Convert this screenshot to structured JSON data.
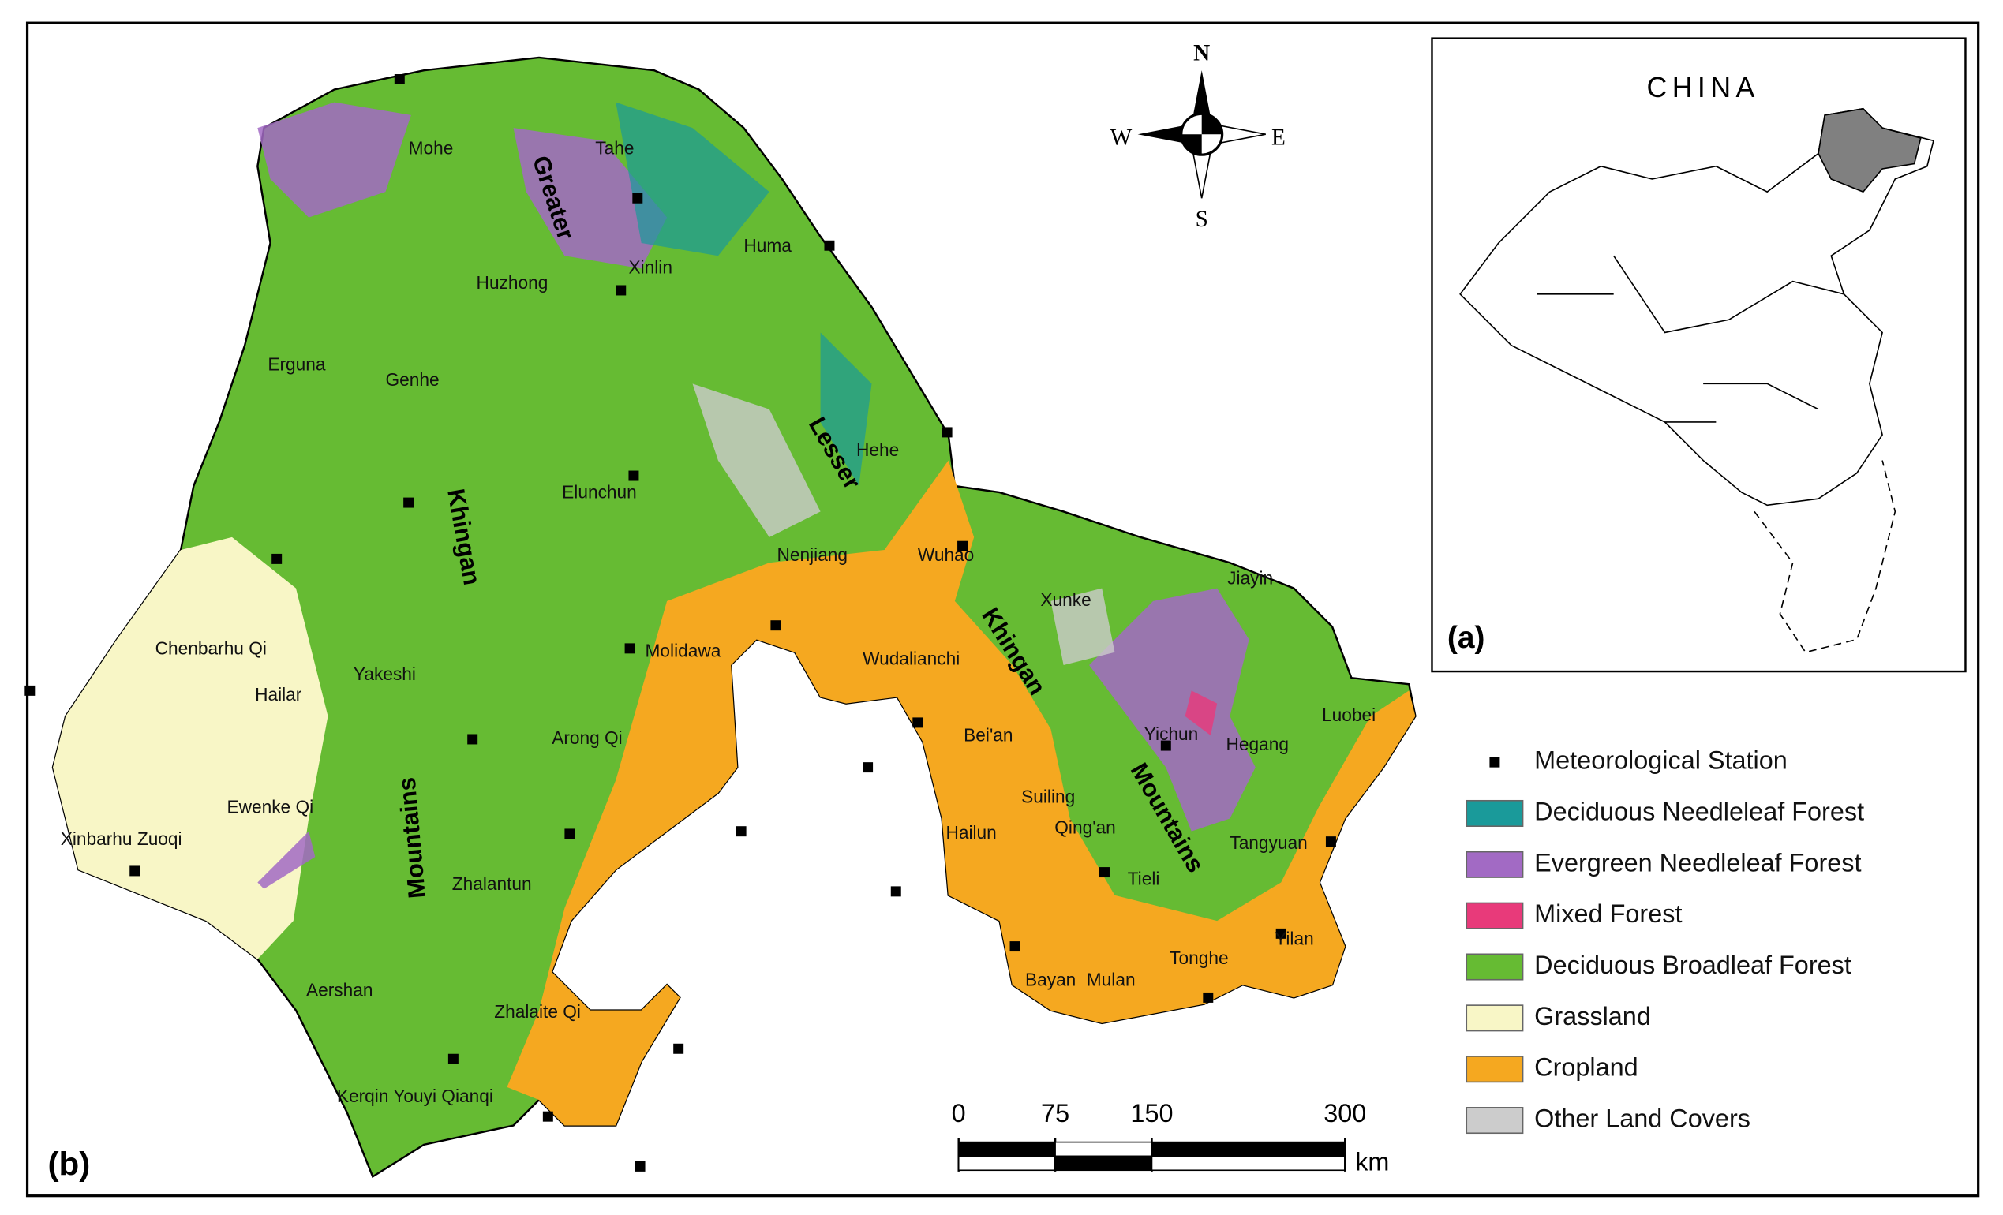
{
  "map": {
    "panel_label": "(b)",
    "inset": {
      "title": "CHINA",
      "label": "(a)",
      "region_color": "#808080"
    },
    "compass": {
      "n": "N",
      "s": "S",
      "e": "E",
      "w": "W"
    },
    "ranges": [
      "Greater",
      "Khingan",
      "Mountains",
      "Lesser",
      "Khingan",
      "Mountains"
    ],
    "places": [
      "Mohe",
      "Tahe",
      "Huma",
      "Xinlin",
      "Huzhong",
      "Erguna",
      "Genhe",
      "Hehe",
      "Elunchun",
      "Nenjiang",
      "Wuhao",
      "Jiayin",
      "Xunke",
      "Chenbarhu Qi",
      "Yakeshi",
      "Hailar",
      "Molidawa",
      "Wudalianchi",
      "Luobei",
      "Yichun",
      "Hegang",
      "Arong Qi",
      "Bei'an",
      "Ewenke Qi",
      "Suiling",
      "Hailun",
      "Qing'an",
      "Xinbarhu Zuoqi",
      "Tieli",
      "Tangyuan",
      "Zhalantun",
      "Yilan",
      "Tonghe",
      "Aershan",
      "Bayan",
      "Mulan",
      "Zhalaite Qi",
      "Kerqin Youyi Qianqi"
    ],
    "legend": [
      {
        "label": "Meteorological Station",
        "color": "#000000"
      },
      {
        "label": "Deciduous Needleleaf Forest",
        "color": "#1a9a9a"
      },
      {
        "label": "Evergreen Needleleaf Forest",
        "color": "#a26ac4"
      },
      {
        "label": "Mixed Forest",
        "color": "#e83a7a"
      },
      {
        "label": "Deciduous Broadleaf Forest",
        "color": "#66bb33"
      },
      {
        "label": "Grassland",
        "color": "#f8f6c6"
      },
      {
        "label": "Cropland",
        "color": "#f5a820"
      },
      {
        "label": "Other Land Covers",
        "color": "#cccccc"
      }
    ],
    "scale": {
      "ticks": [
        0,
        75,
        150,
        300
      ],
      "unit": "km"
    }
  }
}
